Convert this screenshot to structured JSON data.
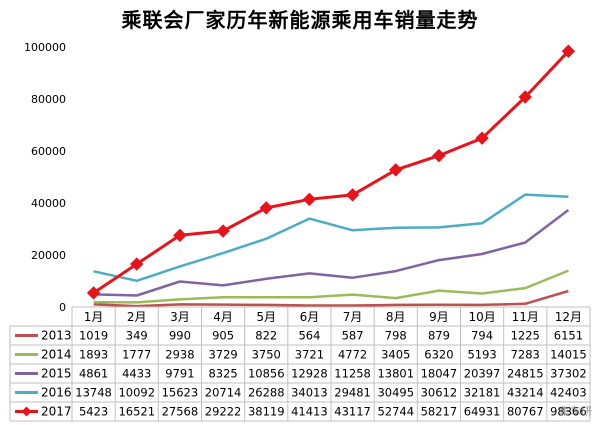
{
  "title": "乘联会厂家历年新能源乘用车销量走势",
  "watermark": "集车研",
  "chart_data": {
    "type": "line",
    "title": "乘联会厂家历年新能源乘用车销量走势",
    "categories": [
      "1月",
      "2月",
      "3月",
      "4月",
      "5月",
      "6月",
      "7月",
      "8月",
      "9月",
      "10月",
      "11月",
      "12月"
    ],
    "ylim": [
      0,
      100000
    ],
    "yticks": [
      0,
      20000,
      40000,
      60000,
      80000,
      100000
    ],
    "grid": false,
    "legend": "data-table-below",
    "series": [
      {
        "name": "2013",
        "color": "#c0504d",
        "marker": false,
        "values": [
          1019,
          349,
          990,
          905,
          822,
          564,
          587,
          798,
          879,
          794,
          1225,
          6151
        ],
        "labels": [
          "1019",
          "349",
          "990",
          "905",
          "822",
          "564",
          "587",
          "798",
          "879",
          "794",
          "1225",
          "6151"
        ]
      },
      {
        "name": "2014",
        "color": "#9bbb59",
        "marker": false,
        "values": [
          1893,
          1777,
          2938,
          3729,
          3750,
          3721,
          4772,
          3405,
          6320,
          5193,
          7283,
          14015
        ],
        "labels": [
          "1893",
          "1777",
          "2938",
          "3729",
          "3750",
          "3721",
          "4772",
          "3405",
          "6320",
          "5193",
          "7283",
          "14015"
        ]
      },
      {
        "name": "2015",
        "color": "#8064a2",
        "marker": false,
        "values": [
          4861,
          4433,
          9791,
          8325,
          10856,
          12928,
          11258,
          13801,
          18047,
          20397,
          24815,
          37302
        ],
        "labels": [
          "4861",
          "4433",
          "9791",
          "8325",
          "10856",
          "12928",
          "11258",
          "13801",
          "18047",
          "20397",
          "24815",
          "37302"
        ]
      },
      {
        "name": "2016",
        "color": "#4bacc6",
        "marker": false,
        "values": [
          13748,
          10092,
          15623,
          20714,
          26288,
          34013,
          29481,
          30495,
          30612,
          32181,
          43214,
          42403
        ],
        "labels": [
          "13748",
          "10092",
          "15623",
          "20714",
          "26288",
          "34013",
          "29481",
          "30495",
          "30612",
          "32181",
          "43214",
          "42403"
        ]
      },
      {
        "name": "2017",
        "color": "#e8141b",
        "marker": true,
        "values": [
          5423,
          16521,
          27568,
          29222,
          38119,
          41413,
          43117,
          52744,
          58217,
          64931,
          80767,
          98366
        ],
        "labels": [
          "5423",
          "16521",
          "27568",
          "29222",
          "38119",
          "41413",
          "43117",
          "52744",
          "58217",
          "64931",
          "80767",
          "98366"
        ]
      }
    ]
  }
}
